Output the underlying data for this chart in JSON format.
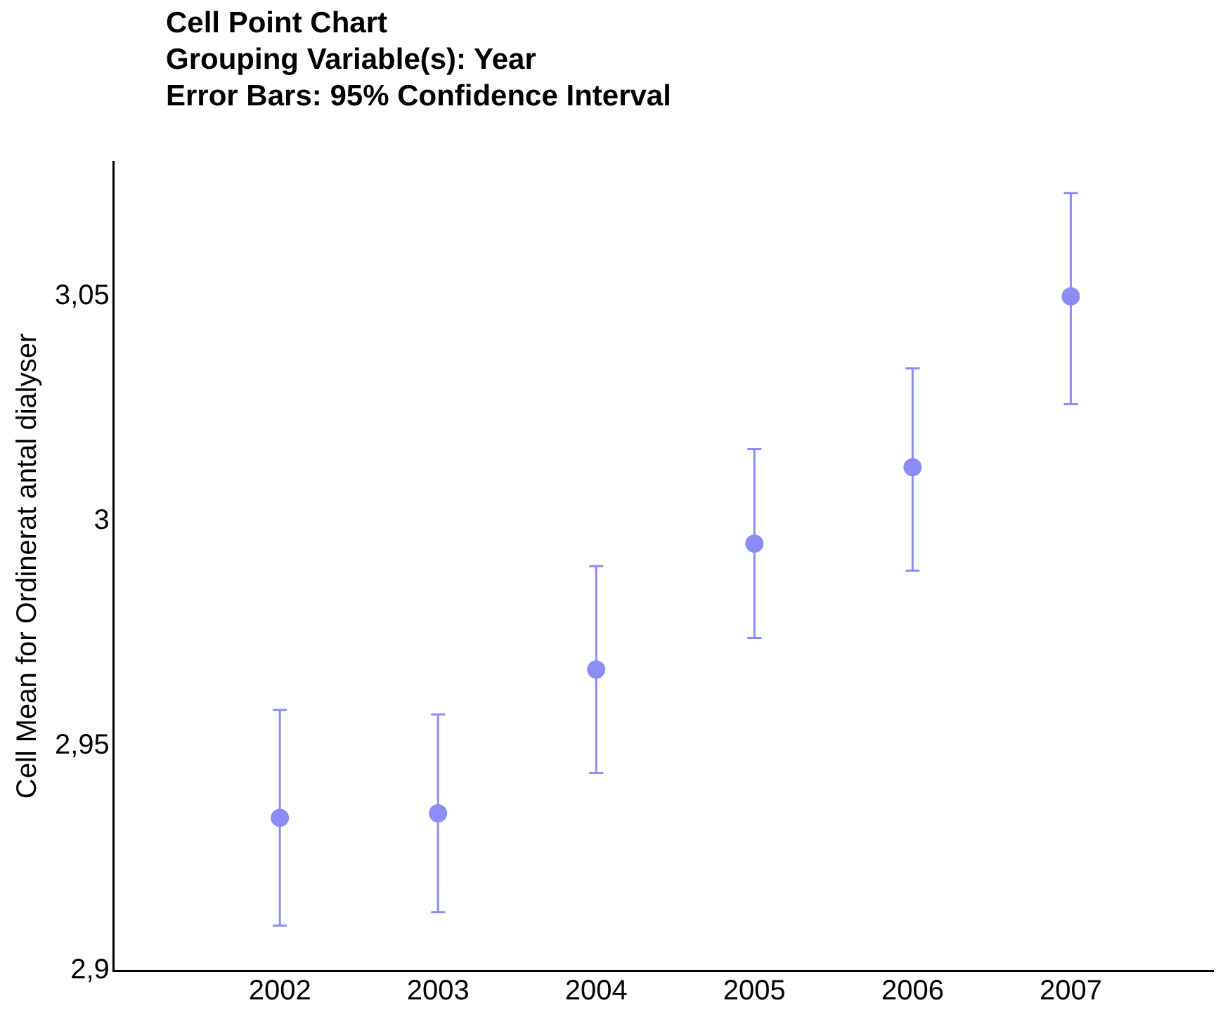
{
  "chart_data": {
    "type": "scatter",
    "title": "Cell Point Chart",
    "subtitle": "Grouping Variable(s): Year",
    "annotations": [
      "Error Bars: 95% Confidence Interval"
    ],
    "ylabel": "Cell Mean for Ordinerat antal dialyser",
    "x": [
      2002,
      2003,
      2004,
      2005,
      2006,
      2007
    ],
    "series": [
      {
        "color": "#8c8cf5",
        "values": [
          2.934,
          2.935,
          2.967,
          2.995,
          3.012,
          3.05
        ],
        "errors": [
          [
            2.91,
            2.958
          ],
          [
            2.913,
            2.957
          ],
          [
            2.944,
            2.99
          ],
          [
            2.974,
            3.016
          ],
          [
            2.989,
            3.034
          ],
          [
            3.026,
            3.073
          ]
        ]
      }
    ],
    "xlim": [
      2000.95,
      2007.9
    ],
    "xticks": [
      2002,
      2003,
      2004,
      2005,
      2006,
      2007
    ],
    "ylim": [
      2.9,
      3.08
    ],
    "yticks": [
      {
        "value": 2.9,
        "label": "2,9"
      },
      {
        "value": 2.95,
        "label": "2,95"
      },
      {
        "value": 3,
        "label": "3"
      },
      {
        "value": 3.05,
        "label": "3,05"
      }
    ],
    "grid": false,
    "legend": false,
    "marker": "circle"
  }
}
